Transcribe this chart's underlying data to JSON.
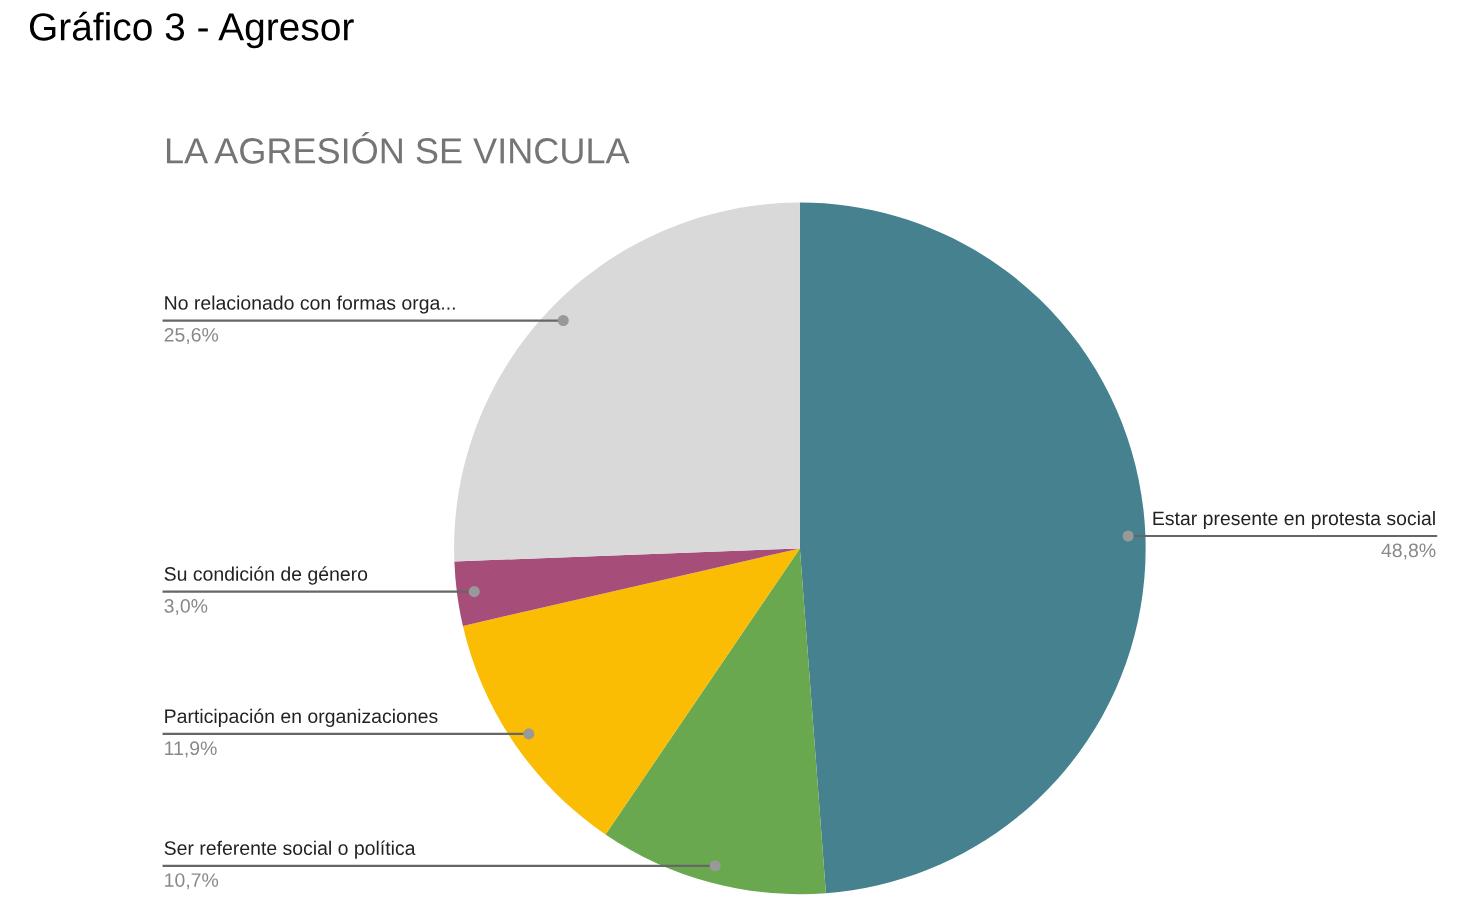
{
  "chart_data": {
    "type": "pie",
    "title": "Gráfico 3 - Agresor",
    "subtitle": "LA AGRESIÓN SE VINCULA",
    "categories": [
      "Estar presente en protesta social",
      "Ser referente social o política",
      "Participación en organizaciones",
      "Su condición de género",
      "No relacionado con formas orga..."
    ],
    "values": [
      48.8,
      10.7,
      11.9,
      3.0,
      25.6
    ],
    "colors": [
      "#45818e",
      "#6aa84f",
      "#fbbc04",
      "#a64d79",
      "#d9d9d9"
    ],
    "value_labels": [
      "48,8%",
      "10,7%",
      "11,9%",
      "3,0%",
      "25,6%"
    ]
  }
}
